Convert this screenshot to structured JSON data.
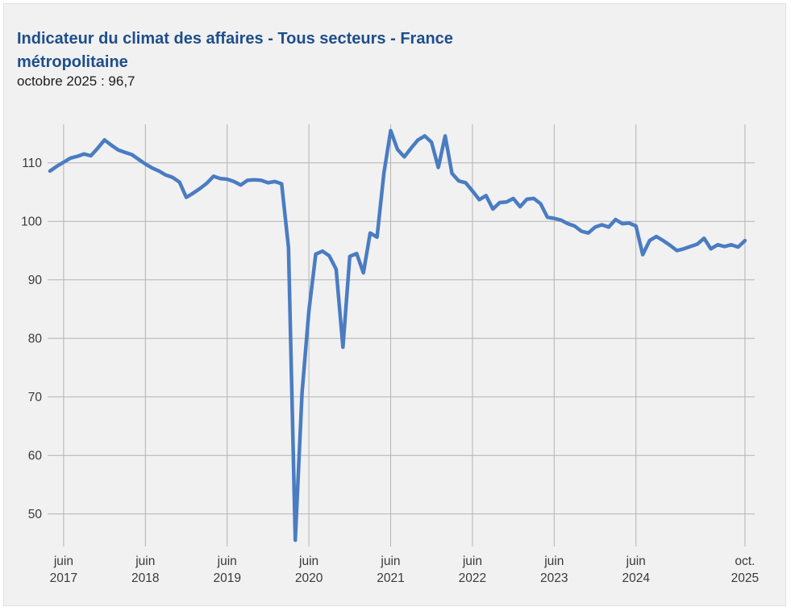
{
  "header": {
    "title": "Indicateur du climat des affaires - Tous secteurs - France métropolitaine",
    "subtitle": "octobre 2025 : 96,7"
  },
  "chart_data": {
    "type": "line",
    "title": "Indicateur du climat des affaires - Tous secteurs - France métropolitaine",
    "latest_point_label": "octobre 2025 : 96,7",
    "series_name": "Indicateur du climat des affaires (tous secteurs)",
    "frequency": "monthly",
    "x_start": "avril 2017",
    "x_end": "octobre 2025",
    "grid": true,
    "legend": "none",
    "line_color": "#4a7cc2",
    "grid_color": "#b3b3b3",
    "background_color": "#f1f1f1",
    "ylim": [
      44,
      117
    ],
    "y_ticks": [
      110,
      100,
      90,
      80,
      70,
      60,
      50
    ],
    "x_ticks": [
      {
        "line1": "juin",
        "line2": "2017",
        "month_index": 2
      },
      {
        "line1": "juin",
        "line2": "2018",
        "month_index": 14
      },
      {
        "line1": "juin",
        "line2": "2019",
        "month_index": 26
      },
      {
        "line1": "juin",
        "line2": "2020",
        "month_index": 38
      },
      {
        "line1": "juin",
        "line2": "2021",
        "month_index": 50
      },
      {
        "line1": "juin",
        "line2": "2022",
        "month_index": 62
      },
      {
        "line1": "juin",
        "line2": "2023",
        "month_index": 74
      },
      {
        "line1": "juin",
        "line2": "2024",
        "month_index": 86
      },
      {
        "line1": "oct.",
        "line2": "2025",
        "month_index": 102
      }
    ],
    "values": [
      108.6,
      109.4,
      110.1,
      110.8,
      111.1,
      111.5,
      111.2,
      112.5,
      113.9,
      113.0,
      112.2,
      111.8,
      111.4,
      110.6,
      109.8,
      109.1,
      108.6,
      107.9,
      107.5,
      106.7,
      104.1,
      104.8,
      105.6,
      106.5,
      107.7,
      107.3,
      107.2,
      106.8,
      106.2,
      107.0,
      107.1,
      107.0,
      106.6,
      106.8,
      106.4,
      95.5,
      45.5,
      70.7,
      84.7,
      94.4,
      94.9,
      94.1,
      91.8,
      78.5,
      94.0,
      94.5,
      91.2,
      98.0,
      97.3,
      108.2,
      115.5,
      112.3,
      111.0,
      112.5,
      113.9,
      114.6,
      113.5,
      109.2,
      114.6,
      108.2,
      106.9,
      106.6,
      105.2,
      103.7,
      104.4,
      102.1,
      103.2,
      103.3,
      103.9,
      102.5,
      103.8,
      103.9,
      103.0,
      100.7,
      100.5,
      100.2,
      99.6,
      99.2,
      98.3,
      98.0,
      99.0,
      99.4,
      99.0,
      100.3,
      99.6,
      99.7,
      99.2,
      94.3,
      96.7,
      97.4,
      96.7,
      95.9,
      95.0,
      95.3,
      95.7,
      96.1,
      97.1,
      95.3,
      96.0,
      95.7,
      96.0,
      95.6,
      96.7
    ]
  }
}
